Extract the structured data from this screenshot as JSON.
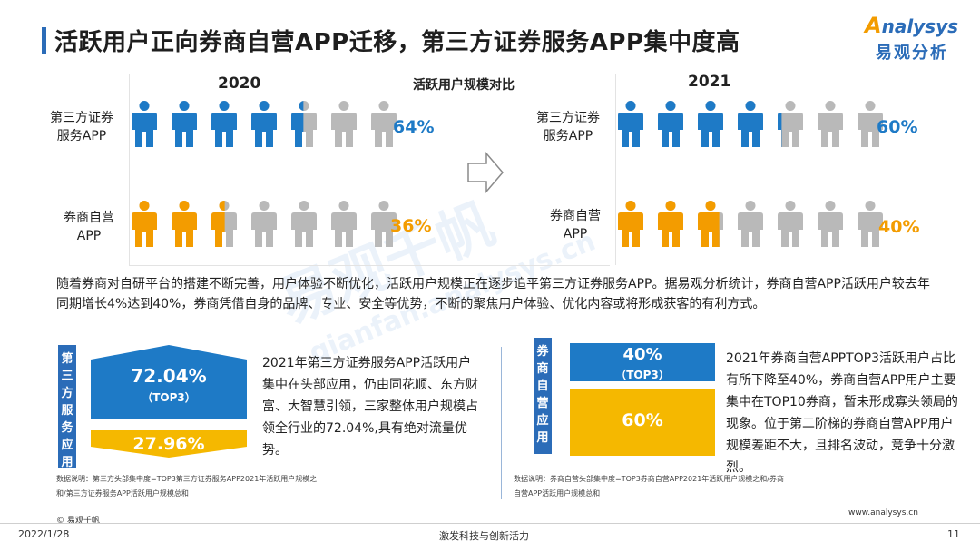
{
  "header": {
    "title": "活跃用户正向券商自营APP迁移，第三方证券服务APP集中度高",
    "logo_text": "nalysys",
    "logo_text_initial": "A",
    "logo_cn": "易观分析"
  },
  "watermark": {
    "main": "易观千帆",
    "sub": "qianfan.analysys.cn"
  },
  "colors": {
    "blue": "#1e7ac6",
    "orange": "#f39c00",
    "gray": "#b9b9b9",
    "navy": "#2b6cb8"
  },
  "chart_data": {
    "type": "pictograph",
    "title": "活跃用户规模对比",
    "unit": "%",
    "panels": [
      {
        "year": "2020",
        "series": [
          {
            "name": "第三方证券服务APP",
            "value": 64,
            "label": "64%",
            "color": "#1e7ac6"
          },
          {
            "name": "券商自营APP",
            "value": 36,
            "label": "36%",
            "color": "#f39c00"
          }
        ]
      },
      {
        "year": "2021",
        "series": [
          {
            "name": "第三方证券服务APP",
            "value": 60,
            "label": "60%",
            "color": "#1e7ac6"
          },
          {
            "name": "券商自营APP",
            "value": 40,
            "label": "40%",
            "color": "#f39c00"
          }
        ]
      }
    ],
    "icon_count": 7
  },
  "row_labels": {
    "third_party": [
      "第三方证券",
      "服务APP"
    ],
    "broker": [
      "券商自营",
      "APP"
    ]
  },
  "description": "随着券商对自研平台的搭建不断完善，用户体验不断优化，活跃用户规模正在逐步追平第三方证券服务APP。据易观分析统计，券商自营APP活跃用户较去年同期增长4%达到40%，券商凭借自身的品牌、专业、安全等优势，不断的聚焦用户体验、优化内容或将形成获客的有利方式。",
  "left_panel": {
    "tab": "第三方服务应用",
    "top_value": "72.04%",
    "top_sub": "（TOP3）",
    "bottom_value": "27.96%",
    "text": "2021年第三方证券服务APP活跃用户集中在头部应用，仍由同花顺、东方财富、大智慧引领，三家整体用户规模占领全行业的72.04%,具有绝对流量优势。",
    "note": "数据说明：第三方头部集中度=TOP3第三方证券服务APP2021年活跃用户规模之和/第三方证券服务APP活跃用户规模总和"
  },
  "right_panel": {
    "tab": "券商自营应用",
    "top_value": "40%",
    "top_sub": "（TOP3）",
    "bottom_value": "60%",
    "text": "2021年券商自营APPTOP3活跃用户占比有所下降至40%，券商自营APP用户主要集中在TOP10券商，暂未形成寡头领局的现象。位于第二阶梯的券商自营APP用户规模差距不大，且排名波动，竞争十分激烈。",
    "note": "数据说明：券商自营头部集中度=TOP3券商自营APP2021年活跃用户规模之和/券商自营APP活跃用户规模总和"
  },
  "footer": {
    "copyright": "© 易观千帆",
    "date": "2022/1/28",
    "slogan": "激发科技与创新活力",
    "url": "www.analysys.cn",
    "page": "11"
  }
}
